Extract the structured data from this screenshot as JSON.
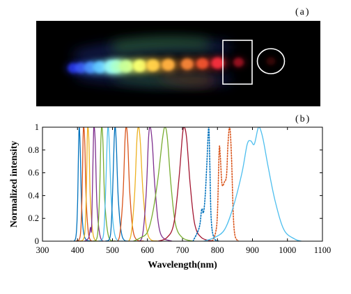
{
  "panel_a": {
    "label": "(a)",
    "spots": [
      {
        "wavelength": 400,
        "color": "#2a3bff",
        "intensity": 0.55
      },
      {
        "wavelength": 420,
        "color": "#3a59ff",
        "intensity": 0.65
      },
      {
        "wavelength": 445,
        "color": "#4a8cff",
        "intensity": 0.8
      },
      {
        "wavelength": 470,
        "color": "#5fc4ff",
        "intensity": 0.9
      },
      {
        "wavelength": 500,
        "color": "#8ff0ff",
        "intensity": 1.0
      },
      {
        "wavelength": 515,
        "color": "#a6ffd8",
        "intensity": 1.0
      },
      {
        "wavelength": 540,
        "color": "#c8ff9a",
        "intensity": 1.0
      },
      {
        "wavelength": 575,
        "color": "#f4ff70",
        "intensity": 1.0
      },
      {
        "wavelength": 610,
        "color": "#ffd04a",
        "intensity": 0.95
      },
      {
        "wavelength": 650,
        "color": "#ffb040",
        "intensity": 0.9
      },
      {
        "wavelength": 700,
        "color": "#ff8a3a",
        "intensity": 0.8
      },
      {
        "wavelength": 740,
        "color": "#ff5a30",
        "intensity": 0.75
      },
      {
        "wavelength": 780,
        "color": "#ff3040",
        "intensity": 0.8
      },
      {
        "wavelength": 835,
        "color": "#c8142a",
        "intensity": 0.45
      },
      {
        "wavelength": 920,
        "color": "#5a0a10",
        "intensity": 0.25
      }
    ],
    "colors": {
      "background": "#000000",
      "annotation": "#ffffff"
    }
  },
  "panel_b": {
    "label": "(b)"
  },
  "chart_data": {
    "type": "line",
    "xlabel": "Wavelength(nm)",
    "ylabel": "Normalized intensity",
    "xlim": [
      300,
      1100
    ],
    "ylim": [
      0,
      1
    ],
    "xticks": [
      "300",
      "400",
      "500",
      "600",
      "700",
      "800",
      "900",
      "1000",
      "1100"
    ],
    "yticks": [
      "0",
      "0.2",
      "0.4",
      "0.6",
      "0.8",
      "1"
    ],
    "series": [
      {
        "peak": 405,
        "color": "#0072bd",
        "style": "solid",
        "points": [
          [
            380,
            0
          ],
          [
            395,
            0.03
          ],
          [
            400,
            0.3
          ],
          [
            403,
            0.8
          ],
          [
            405,
            1
          ],
          [
            408,
            0.8
          ],
          [
            412,
            0.3
          ],
          [
            420,
            0.04
          ],
          [
            440,
            0
          ]
        ]
      },
      {
        "peak": 418,
        "color": "#d95319",
        "style": "solid",
        "points": [
          [
            395,
            0
          ],
          [
            408,
            0.05
          ],
          [
            413,
            0.4
          ],
          [
            416,
            0.9
          ],
          [
            418,
            1
          ],
          [
            421,
            0.85
          ],
          [
            425,
            0.35
          ],
          [
            433,
            0.04
          ],
          [
            450,
            0
          ]
        ]
      },
      {
        "peak": 430,
        "color": "#edb120",
        "style": "solid",
        "points": [
          [
            405,
            0
          ],
          [
            420,
            0.05
          ],
          [
            425,
            0.4
          ],
          [
            428,
            0.9
          ],
          [
            430,
            1
          ],
          [
            433,
            0.85
          ],
          [
            437,
            0.35
          ],
          [
            446,
            0.04
          ],
          [
            465,
            0
          ]
        ]
      },
      {
        "peak": 448,
        "color": "#7e2f8e",
        "style": "solid",
        "points": [
          [
            420,
            0
          ],
          [
            432,
            0.03
          ],
          [
            437,
            0.12
          ],
          [
            440,
            0.1
          ],
          [
            443,
            0.5
          ],
          [
            446,
            0.95
          ],
          [
            448,
            1
          ],
          [
            451,
            0.85
          ],
          [
            456,
            0.3
          ],
          [
            466,
            0.03
          ],
          [
            485,
            0
          ]
        ]
      },
      {
        "peak": 470,
        "color": "#77ac30",
        "style": "solid",
        "points": [
          [
            445,
            0
          ],
          [
            457,
            0.05
          ],
          [
            463,
            0.4
          ],
          [
            467,
            0.9
          ],
          [
            470,
            1
          ],
          [
            473,
            0.85
          ],
          [
            478,
            0.35
          ],
          [
            489,
            0.04
          ],
          [
            510,
            0
          ]
        ]
      },
      {
        "peak": 488,
        "color": "#4dbeee",
        "style": "solid",
        "points": [
          [
            460,
            0
          ],
          [
            474,
            0.05
          ],
          [
            480,
            0.4
          ],
          [
            485,
            0.9
          ],
          [
            488,
            1
          ],
          [
            491,
            0.85
          ],
          [
            497,
            0.35
          ],
          [
            508,
            0.04
          ],
          [
            530,
            0
          ]
        ]
      },
      {
        "peak": 508,
        "color": "#0072bd",
        "style": "solid",
        "points": [
          [
            480,
            0
          ],
          [
            494,
            0.05
          ],
          [
            500,
            0.4
          ],
          [
            505,
            0.9
          ],
          [
            508,
            1
          ],
          [
            511,
            0.85
          ],
          [
            517,
            0.35
          ],
          [
            528,
            0.04
          ],
          [
            550,
            0
          ]
        ]
      },
      {
        "peak": 540,
        "color": "#d95319",
        "style": "solid",
        "points": [
          [
            505,
            0
          ],
          [
            520,
            0.04
          ],
          [
            530,
            0.4
          ],
          [
            536,
            0.9
          ],
          [
            540,
            1
          ],
          [
            544,
            0.85
          ],
          [
            550,
            0.4
          ],
          [
            562,
            0.05
          ],
          [
            590,
            0
          ]
        ]
      },
      {
        "peak": 575,
        "color": "#edb120",
        "style": "solid",
        "points": [
          [
            535,
            0
          ],
          [
            552,
            0.04
          ],
          [
            563,
            0.4
          ],
          [
            570,
            0.9
          ],
          [
            575,
            1
          ],
          [
            580,
            0.85
          ],
          [
            588,
            0.4
          ],
          [
            602,
            0.05
          ],
          [
            630,
            0
          ]
        ]
      },
      {
        "peak": 608,
        "color": "#7e2f8e",
        "style": "solid",
        "points": [
          [
            565,
            0
          ],
          [
            585,
            0.04
          ],
          [
            596,
            0.4
          ],
          [
            603,
            0.9
          ],
          [
            608,
            1
          ],
          [
            614,
            0.85
          ],
          [
            622,
            0.45
          ],
          [
            637,
            0.07
          ],
          [
            670,
            0
          ]
        ]
      },
      {
        "peak": 650,
        "color": "#77ac30",
        "style": "solid",
        "points": [
          [
            560,
            0
          ],
          [
            580,
            0.03
          ],
          [
            600,
            0.08
          ],
          [
            615,
            0.25
          ],
          [
            630,
            0.55
          ],
          [
            643,
            0.9
          ],
          [
            650,
            1
          ],
          [
            657,
            0.9
          ],
          [
            667,
            0.5
          ],
          [
            680,
            0.15
          ],
          [
            700,
            0.03
          ],
          [
            730,
            0
          ]
        ]
      },
      {
        "peak": 705,
        "color": "#a2142f",
        "style": "solid",
        "points": [
          [
            630,
            0
          ],
          [
            655,
            0.03
          ],
          [
            675,
            0.15
          ],
          [
            690,
            0.55
          ],
          [
            700,
            0.93
          ],
          [
            705,
            1
          ],
          [
            712,
            0.9
          ],
          [
            722,
            0.5
          ],
          [
            735,
            0.15
          ],
          [
            755,
            0.03
          ],
          [
            790,
            0
          ]
        ]
      },
      {
        "peak": 775,
        "color": "#0072bd",
        "style": "dotted",
        "points": [
          [
            730,
            0
          ],
          [
            748,
            0.12
          ],
          [
            755,
            0.28
          ],
          [
            760,
            0.25
          ],
          [
            765,
            0.4
          ],
          [
            770,
            0.7
          ],
          [
            775,
            1
          ],
          [
            778,
            0.7
          ],
          [
            782,
            0.2
          ],
          [
            790,
            0.03
          ],
          [
            805,
            0
          ]
        ]
      },
      {
        "peak": 835,
        "color": "#d95319",
        "style": "dotted",
        "points": [
          [
            785,
            0
          ],
          [
            795,
            0.08
          ],
          [
            800,
            0.25
          ],
          [
            805,
            0.8
          ],
          [
            808,
            0.75
          ],
          [
            813,
            0.5
          ],
          [
            820,
            0.52
          ],
          [
            826,
            0.58
          ],
          [
            830,
            0.85
          ],
          [
            835,
            1
          ],
          [
            840,
            0.75
          ],
          [
            845,
            0.25
          ],
          [
            850,
            0.05
          ],
          [
            860,
            0
          ]
        ]
      },
      {
        "peak": 920,
        "color": "#4dbeee",
        "style": "solid",
        "points": [
          [
            760,
            0
          ],
          [
            790,
            0.03
          ],
          [
            820,
            0.1
          ],
          [
            845,
            0.3
          ],
          [
            870,
            0.6
          ],
          [
            885,
            0.85
          ],
          [
            895,
            0.88
          ],
          [
            905,
            0.85
          ],
          [
            915,
            0.98
          ],
          [
            920,
            1
          ],
          [
            930,
            0.9
          ],
          [
            945,
            0.65
          ],
          [
            965,
            0.35
          ],
          [
            990,
            0.1
          ],
          [
            1020,
            0.02
          ],
          [
            1040,
            0
          ]
        ]
      }
    ]
  }
}
